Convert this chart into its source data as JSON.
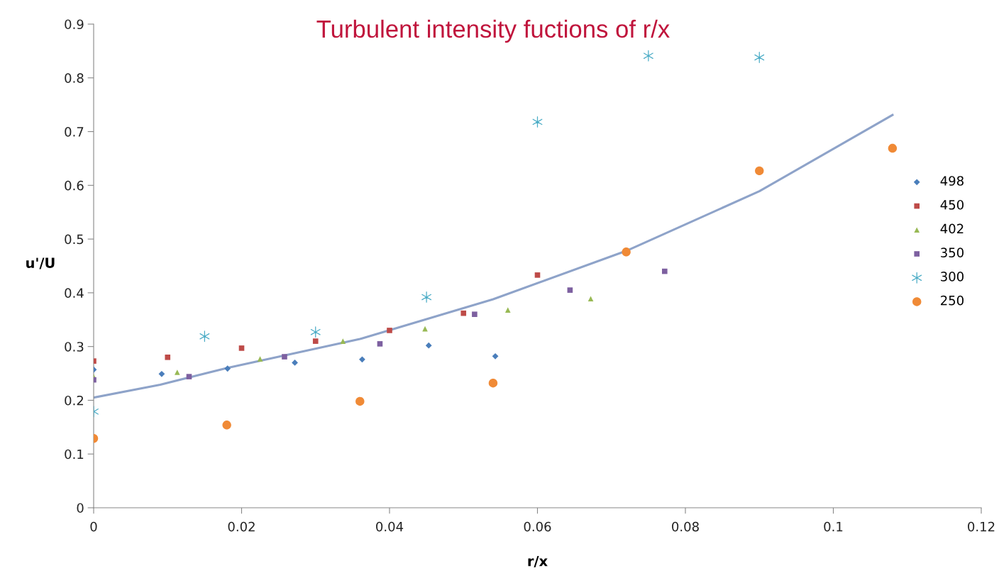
{
  "chart_data": {
    "type": "scatter",
    "title": "Turbulent intensity fuctions of r/x",
    "xlabel": "r/x",
    "ylabel": "u'/U",
    "xlim": [
      0,
      0.12
    ],
    "xticks": [
      0,
      0.02,
      0.04,
      0.06,
      0.08,
      0.1,
      0.12
    ],
    "ylim": [
      0,
      0.9
    ],
    "yticks": [
      0,
      0.1,
      0.2,
      0.3,
      0.4,
      0.5,
      0.6,
      0.7,
      0.8,
      0.9
    ],
    "grid": false,
    "legend": "right",
    "series": [
      {
        "name": "498",
        "color": "#4a7ebb",
        "marker": "diamond",
        "x": [
          0,
          0.0092,
          0.0181,
          0.0272,
          0.0363,
          0.0453,
          0.0543
        ],
        "values": [
          0.257,
          0.249,
          0.259,
          0.27,
          0.276,
          0.302,
          0.282
        ]
      },
      {
        "name": "450",
        "color": "#be4b48",
        "marker": "square",
        "x": [
          0,
          0.01,
          0.02,
          0.03,
          0.04,
          0.05,
          0.06
        ],
        "values": [
          0.273,
          0.28,
          0.297,
          0.31,
          0.33,
          0.362,
          0.433
        ]
      },
      {
        "name": "402",
        "color": "#98b954",
        "marker": "triangle",
        "x": [
          0,
          0.0113,
          0.0225,
          0.0337,
          0.0448,
          0.056,
          0.0672
        ],
        "values": [
          0.244,
          0.252,
          0.277,
          0.31,
          0.333,
          0.368,
          0.389
        ]
      },
      {
        "name": "350",
        "color": "#7d60a0",
        "marker": "square",
        "x": [
          0,
          0.0129,
          0.0258,
          0.0387,
          0.0515,
          0.0644,
          0.0772
        ],
        "values": [
          0.238,
          0.244,
          0.281,
          0.305,
          0.36,
          0.405,
          0.44
        ]
      },
      {
        "name": "300",
        "color": "#4bacc6",
        "marker": "cross",
        "x": [
          0,
          0.015,
          0.03,
          0.045,
          0.06,
          0.075,
          0.09
        ],
        "values": [
          0.179,
          0.319,
          0.327,
          0.392,
          0.718,
          0.841,
          0.838
        ]
      },
      {
        "name": "250",
        "color": "#f08a36",
        "marker": "circle",
        "x": [
          0,
          0.018,
          0.036,
          0.054,
          0.072,
          0.09,
          0.108
        ],
        "values": [
          0.129,
          0.154,
          0.198,
          0.232,
          0.476,
          0.627,
          0.669
        ]
      },
      {
        "type": "line",
        "color": "#8ea3c9",
        "marker": "none",
        "x": [
          0,
          0.009,
          0.018,
          0.036,
          0.054,
          0.072,
          0.09,
          0.108
        ],
        "values": [
          0.205,
          0.229,
          0.26,
          0.314,
          0.388,
          0.478,
          0.589,
          0.731
        ]
      }
    ]
  }
}
